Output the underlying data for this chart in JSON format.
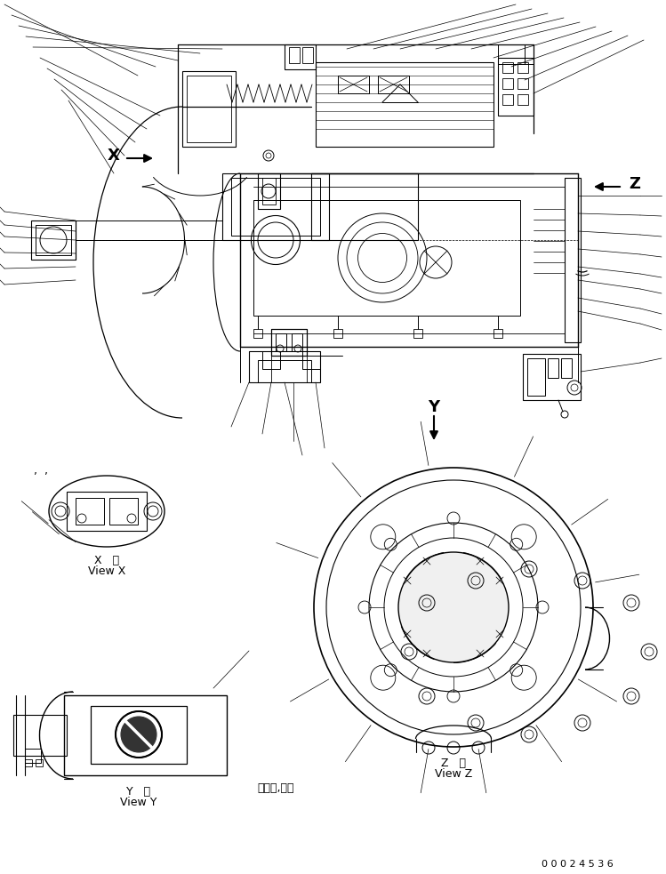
{
  "bg_color": "#ffffff",
  "line_color": "#000000",
  "fig_width": 7.49,
  "fig_height": 9.83,
  "dpi": 100,
  "drawing_number": "0 0 0 2 4 5 3 6",
  "view_x_label1": "X   視",
  "view_x_label2": "View X",
  "view_y_label1": "Y   視",
  "view_y_label2": "View Y",
  "view_z_label1": "Z   視",
  "view_z_label2": "View Z",
  "dots_text": "・・・,・・",
  "comma_text": ",  ,"
}
